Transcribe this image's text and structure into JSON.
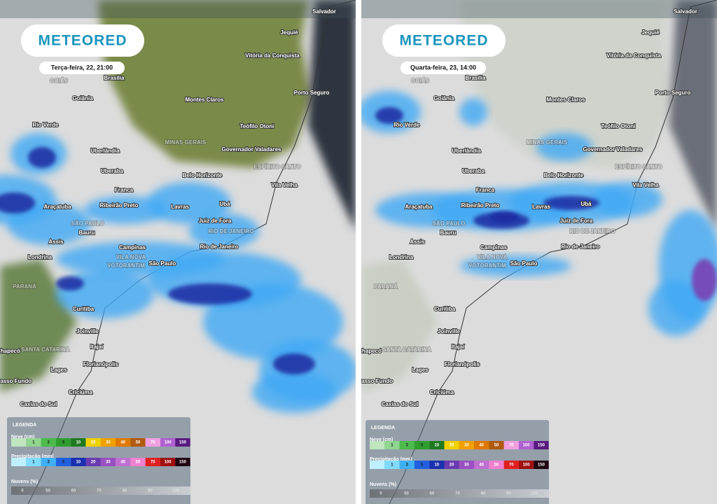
{
  "logo": "METEORED",
  "panels": [
    {
      "date": "Terça-feira, 22, 21:00"
    },
    {
      "date": "Quarta-feira, 23, 14:00"
    }
  ],
  "map_labels": [
    "Salvador",
    "Jequié",
    "Vitória da Conquista",
    "Brasília",
    "GOIÁS",
    "Porto Seguro",
    "Goiânia",
    "Montes Claros",
    "Teófilo Otoni",
    "Rio Verde",
    "MINAS GERAIS",
    "Governador Valadares",
    "Uberlândia",
    "ESPÍRITO SANTO",
    "Uberaba",
    "Belo Horizonte",
    "Vila Velha",
    "Franca",
    "Araçatuba",
    "Ribeirão Preto",
    "Lavras",
    "Ubá",
    "Juiz de Fora",
    "SÃO PAULO",
    "Bauru",
    "RIO DE JANEIRO",
    "Assis",
    "Campinas",
    "Rio de Janeiro",
    "VILA NOVA",
    "VOTORANTIM",
    "São Paulo",
    "Londrina",
    "PARANÁ",
    "Curitiba",
    "Joinville",
    "Itajaí",
    "SANTA CATARINA",
    "Chapecó",
    "Florianópolis",
    "Lages",
    "Passo Fundo",
    "Criciúma",
    "Caxias do Sul"
  ],
  "legend": {
    "title": "LEGENDA",
    "snow": {
      "label": "Neve (cm)",
      "steps": [
        "1",
        "3",
        "5",
        "10",
        "20",
        "30",
        "40",
        "50",
        "70",
        "100",
        "150"
      ]
    },
    "precip": {
      "label": "Precipitação (mm)",
      "steps": [
        "1",
        "3",
        "5",
        "10",
        "20",
        "30",
        "40",
        "50",
        "70",
        "100",
        "150"
      ]
    },
    "clouds": {
      "label": "Nuvens (%)",
      "steps": [
        "0",
        "50",
        "60",
        "70",
        "80",
        "90",
        "100"
      ]
    }
  }
}
